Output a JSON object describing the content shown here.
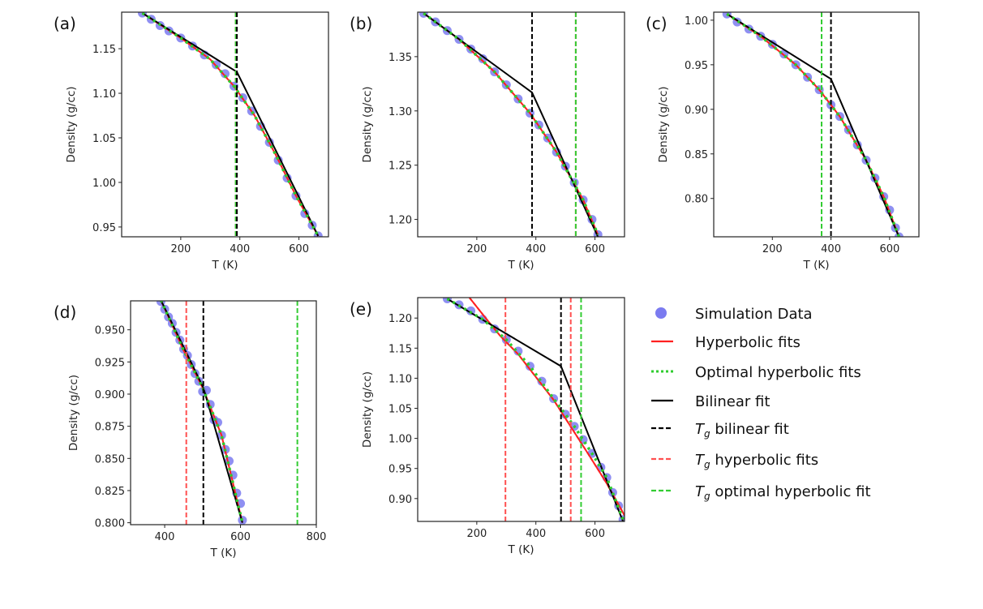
{
  "colors": {
    "data": "#7b7bf0",
    "hyperbolic": "#ff2020",
    "optimal": "#2ecc2e",
    "bilinear": "#000000",
    "tg_hyperbolic": "#ff5050",
    "tg_optimal": "#33cc33"
  },
  "legend": {
    "simulation": "Simulation Data",
    "hyperbolic": "Hyperbolic fits",
    "optimal": "Optimal hyperbolic fits",
    "bilinear": "Bilinear fit",
    "tg_bilinear": {
      "symbol": "T",
      "subscript": "g",
      "text": " bilinear fit"
    },
    "tg_hyperbolic": {
      "symbol": "T",
      "subscript": "g",
      "text": " hyperbolic fits"
    },
    "tg_optimal": {
      "symbol": "T",
      "subscript": "g",
      "text": " optimal hyperbolic fit"
    }
  },
  "chart_data": [
    {
      "panel": "(a)",
      "type": "scatter",
      "xlabel": "T (K)",
      "ylabel": "Density (g/cc)",
      "xlim": [
        0,
        700
      ],
      "ylim": [
        0.939,
        1.191
      ],
      "xticks": [
        "200",
        "400",
        "600"
      ],
      "yticks": [
        "0.95",
        "1.00",
        "1.05",
        "1.10",
        "1.15"
      ],
      "data": [
        [
          70,
          1.19
        ],
        [
          100,
          1.183
        ],
        [
          130,
          1.176
        ],
        [
          160,
          1.17
        ],
        [
          200,
          1.162
        ],
        [
          240,
          1.153
        ],
        [
          280,
          1.143
        ],
        [
          320,
          1.132
        ],
        [
          350,
          1.122
        ],
        [
          380,
          1.108
        ],
        [
          410,
          1.095
        ],
        [
          440,
          1.08
        ],
        [
          470,
          1.063
        ],
        [
          500,
          1.045
        ],
        [
          530,
          1.025
        ],
        [
          560,
          1.005
        ],
        [
          590,
          0.985
        ],
        [
          620,
          0.965
        ],
        [
          645,
          0.952
        ],
        [
          665,
          0.94
        ]
      ],
      "hyperbolic_fit": [
        [
          70,
          1.19
        ],
        [
          200,
          1.162
        ],
        [
          300,
          1.138
        ],
        [
          380,
          1.108
        ],
        [
          450,
          1.075
        ],
        [
          520,
          1.032
        ],
        [
          590,
          0.985
        ],
        [
          665,
          0.94
        ]
      ],
      "bilinear_fit": [
        [
          70,
          1.19
        ],
        [
          390,
          1.124
        ],
        [
          665,
          0.94
        ]
      ],
      "tg_bilinear": 390,
      "tg_hyperbolic": [
        386
      ],
      "tg_optimal": 386
    },
    {
      "panel": "(b)",
      "type": "scatter",
      "xlabel": "T (K)",
      "ylabel": "Density (g/cc)",
      "xlim": [
        0,
        700
      ],
      "ylim": [
        1.184,
        1.391
      ],
      "xticks": [
        "200",
        "400",
        "600"
      ],
      "yticks": [
        "1.20",
        "1.25",
        "1.30",
        "1.35"
      ],
      "data": [
        [
          20,
          1.39
        ],
        [
          60,
          1.382
        ],
        [
          100,
          1.374
        ],
        [
          140,
          1.366
        ],
        [
          180,
          1.357
        ],
        [
          220,
          1.348
        ],
        [
          260,
          1.336
        ],
        [
          300,
          1.324
        ],
        [
          340,
          1.311
        ],
        [
          380,
          1.298
        ],
        [
          410,
          1.287
        ],
        [
          440,
          1.275
        ],
        [
          470,
          1.262
        ],
        [
          500,
          1.249
        ],
        [
          530,
          1.234
        ],
        [
          560,
          1.218
        ],
        [
          590,
          1.2
        ],
        [
          610,
          1.186
        ]
      ],
      "hyperbolic_fit": [
        [
          20,
          1.39
        ],
        [
          140,
          1.366
        ],
        [
          260,
          1.336
        ],
        [
          380,
          1.298
        ],
        [
          470,
          1.262
        ],
        [
          560,
          1.218
        ],
        [
          610,
          1.186
        ]
      ],
      "bilinear_fit": [
        [
          20,
          1.39
        ],
        [
          387,
          1.317
        ],
        [
          610,
          1.184
        ]
      ],
      "tg_bilinear": 387,
      "tg_hyperbolic": [
        535
      ],
      "tg_optimal": 535
    },
    {
      "panel": "(c)",
      "type": "scatter",
      "xlabel": "T (K)",
      "ylabel": "Density (g/cc)",
      "xlim": [
        0,
        700
      ],
      "ylim": [
        0.757,
        1.009
      ],
      "xticks": [
        "200",
        "400",
        "600"
      ],
      "yticks": [
        "0.80",
        "0.85",
        "0.90",
        "0.95",
        "1.00"
      ],
      "data": [
        [
          45,
          1.007
        ],
        [
          80,
          0.998
        ],
        [
          120,
          0.99
        ],
        [
          160,
          0.982
        ],
        [
          200,
          0.973
        ],
        [
          240,
          0.962
        ],
        [
          280,
          0.95
        ],
        [
          320,
          0.936
        ],
        [
          360,
          0.922
        ],
        [
          400,
          0.905
        ],
        [
          430,
          0.892
        ],
        [
          460,
          0.877
        ],
        [
          490,
          0.86
        ],
        [
          520,
          0.843
        ],
        [
          550,
          0.823
        ],
        [
          580,
          0.802
        ],
        [
          600,
          0.787
        ],
        [
          620,
          0.767
        ],
        [
          632,
          0.757
        ]
      ],
      "hyperbolic_fit": [
        [
          45,
          1.007
        ],
        [
          160,
          0.982
        ],
        [
          280,
          0.95
        ],
        [
          360,
          0.922
        ],
        [
          430,
          0.892
        ],
        [
          520,
          0.843
        ],
        [
          580,
          0.802
        ],
        [
          632,
          0.757
        ]
      ],
      "bilinear_fit": [
        [
          45,
          1.007
        ],
        [
          400,
          0.934
        ],
        [
          632,
          0.757
        ]
      ],
      "tg_bilinear": 400,
      "tg_hyperbolic": [
        368
      ],
      "tg_optimal": 368
    },
    {
      "panel": "(d)",
      "type": "scatter",
      "xlabel": "T (K)",
      "ylabel": "Density (g/cc)",
      "xlim": [
        310,
        800
      ],
      "ylim": [
        0.7985,
        0.9725
      ],
      "xticks": [
        "400",
        "600",
        "800"
      ],
      "yticks": [
        "0.800",
        "0.825",
        "0.850",
        "0.875",
        "0.900",
        "0.925",
        "0.950"
      ],
      "data": [
        [
          390,
          0.972
        ],
        [
          400,
          0.966
        ],
        [
          410,
          0.96
        ],
        [
          420,
          0.955
        ],
        [
          430,
          0.948
        ],
        [
          440,
          0.942
        ],
        [
          450,
          0.935
        ],
        [
          460,
          0.93
        ],
        [
          470,
          0.923
        ],
        [
          480,
          0.916
        ],
        [
          490,
          0.91
        ],
        [
          500,
          0.902
        ],
        [
          510,
          0.903
        ],
        [
          520,
          0.892
        ],
        [
          530,
          0.88
        ],
        [
          540,
          0.878
        ],
        [
          550,
          0.868
        ],
        [
          560,
          0.857
        ],
        [
          570,
          0.848
        ],
        [
          580,
          0.837
        ],
        [
          590,
          0.823
        ],
        [
          600,
          0.815
        ],
        [
          605,
          0.802
        ]
      ],
      "hyperbolic_fit": [
        [
          390,
          0.973
        ],
        [
          450,
          0.934
        ],
        [
          500,
          0.905
        ],
        [
          550,
          0.868
        ],
        [
          605,
          0.8
        ]
      ],
      "bilinear_fit": [
        [
          390,
          0.973
        ],
        [
          502,
          0.905
        ],
        [
          605,
          0.8
        ]
      ],
      "tg_bilinear": 502,
      "tg_hyperbolic": [
        457
      ],
      "tg_optimal": 750
    },
    {
      "panel": "(e)",
      "type": "scatter",
      "xlabel": "T (K)",
      "ylabel": "Density (g/cc)",
      "xlim": [
        0,
        700
      ],
      "ylim": [
        0.862,
        1.234
      ],
      "xticks": [
        "200",
        "400",
        "600"
      ],
      "yticks": [
        "0.90",
        "0.95",
        "1.00",
        "1.05",
        "1.10",
        "1.15",
        "1.20"
      ],
      "data": [
        [
          100,
          1.232
        ],
        [
          140,
          1.222
        ],
        [
          180,
          1.212
        ],
        [
          220,
          1.198
        ],
        [
          260,
          1.182
        ],
        [
          300,
          1.164
        ],
        [
          340,
          1.145
        ],
        [
          380,
          1.12
        ],
        [
          420,
          1.095
        ],
        [
          460,
          1.066
        ],
        [
          500,
          1.04
        ],
        [
          530,
          1.02
        ],
        [
          560,
          0.998
        ],
        [
          590,
          0.975
        ],
        [
          620,
          0.952
        ],
        [
          640,
          0.935
        ],
        [
          660,
          0.91
        ],
        [
          680,
          0.888
        ],
        [
          695,
          0.865
        ]
      ],
      "hyperbolic_fit": [
        [
          175,
          1.234
        ],
        [
          230,
          1.2
        ],
        [
          280,
          1.17
        ],
        [
          340,
          1.14
        ],
        [
          400,
          1.102
        ],
        [
          460,
          1.064
        ],
        [
          520,
          1.018
        ],
        [
          580,
          0.972
        ],
        [
          640,
          0.925
        ],
        [
          700,
          0.872
        ]
      ],
      "optimal_fit": [
        [
          100,
          1.232
        ],
        [
          220,
          1.198
        ],
        [
          300,
          1.164
        ],
        [
          380,
          1.12
        ],
        [
          460,
          1.066
        ],
        [
          530,
          1.02
        ],
        [
          590,
          0.975
        ],
        [
          640,
          0.935
        ],
        [
          695,
          0.865
        ]
      ],
      "bilinear_fit": [
        [
          100,
          1.232
        ],
        [
          485,
          1.12
        ],
        [
          695,
          0.862
        ]
      ],
      "tg_bilinear": 485,
      "tg_hyperbolic": [
        297,
        518
      ],
      "tg_optimal": 553
    }
  ]
}
